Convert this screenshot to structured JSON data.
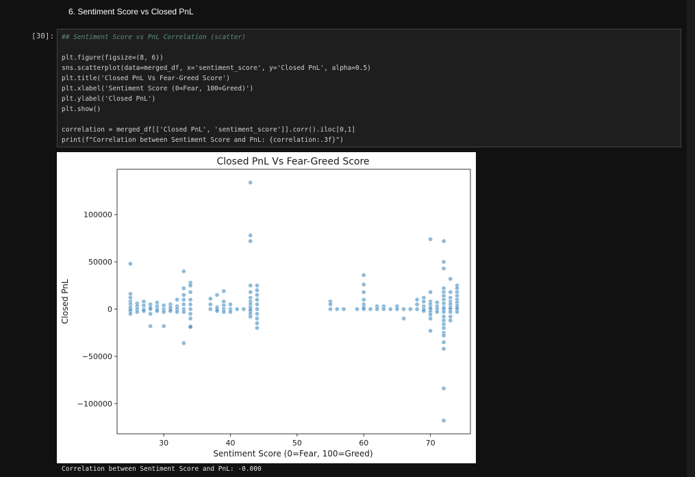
{
  "notebook": {
    "heading": "6. Sentiment Score vs Closed PnL",
    "cell_prompt": "[30]:",
    "code_lines": [
      "## Sentiment Score vs PnL Correlation (scatter)",
      "",
      "plt.figure(figsize=(8, 6))",
      "sns.scatterplot(data=merged_df, x='sentiment_score', y='Closed PnL', alpha=0.5)",
      "plt.title('Closed PnL Vs Fear-Greed Score')",
      "plt.xlabel('Sentiment Score (0=Fear, 100=Greed)')",
      "plt.ylabel('Closed PnL')",
      "plt.show()",
      "",
      "correlation = merged_df[['Closed PnL', 'sentiment_score']].corr().iloc[0,1]",
      "print(f\"Correlation between Sentiment Score and PnL: {correlation:.3f}\")"
    ],
    "output_text": "Correlation between Sentiment Score and PnL: -0.000"
  },
  "colors": {
    "background": "#111111",
    "cell_background": "#1e1e1e",
    "point": "#1f77b4"
  },
  "chart_data": {
    "type": "scatter",
    "title": "Closed PnL Vs Fear-Greed Score",
    "xlabel": "Sentiment Score (0=Fear, 100=Greed)",
    "ylabel": "Closed PnL",
    "xlim": [
      23,
      76
    ],
    "ylim": [
      -132000,
      148000
    ],
    "xticks": [
      30,
      40,
      50,
      60,
      70
    ],
    "yticks": [
      -100000,
      -50000,
      0,
      50000,
      100000
    ],
    "grid": false,
    "alpha": 0.5,
    "columns": [
      {
        "x": 25,
        "y": [
          48000,
          16000,
          12000,
          8000,
          5000,
          2000,
          0,
          -2000,
          -5000
        ]
      },
      {
        "x": 26,
        "y": [
          6000,
          3000,
          0,
          -3000
        ]
      },
      {
        "x": 27,
        "y": [
          8000,
          4000,
          0,
          -2000
        ]
      },
      {
        "x": 28,
        "y": [
          5000,
          2000,
          0,
          -5000,
          -18000
        ]
      },
      {
        "x": 29,
        "y": [
          7000,
          3000,
          0,
          -2000
        ]
      },
      {
        "x": 30,
        "y": [
          4000,
          0,
          -3000,
          -18000
        ]
      },
      {
        "x": 31,
        "y": [
          5000,
          2000,
          0,
          -2000
        ]
      },
      {
        "x": 32,
        "y": [
          10000,
          3000,
          0,
          -3000
        ]
      },
      {
        "x": 33,
        "y": [
          40000,
          22000,
          15000,
          10000,
          5000,
          0,
          -3000,
          -36000
        ]
      },
      {
        "x": 34,
        "y": [
          28000,
          25000,
          18000,
          10000,
          5000,
          0,
          -5000,
          -10000,
          -18000,
          -19000
        ]
      },
      {
        "x": 37,
        "y": [
          11000,
          5000,
          0
        ]
      },
      {
        "x": 38,
        "y": [
          15000,
          2000,
          0,
          -2000
        ]
      },
      {
        "x": 39,
        "y": [
          19000,
          8000,
          4000,
          0,
          -3000
        ]
      },
      {
        "x": 40,
        "y": [
          5000,
          0,
          -3000
        ]
      },
      {
        "x": 41,
        "y": [
          0
        ]
      },
      {
        "x": 42,
        "y": [
          0
        ]
      },
      {
        "x": 43,
        "y": [
          134000,
          78000,
          72000,
          25000,
          18000,
          12000,
          8000,
          5000,
          2000,
          0,
          -2000,
          -5000,
          -8000
        ]
      },
      {
        "x": 44,
        "y": [
          25000,
          20000,
          15000,
          10000,
          5000,
          0,
          -5000,
          -10000,
          -15000,
          -20000
        ]
      },
      {
        "x": 55,
        "y": [
          8000,
          5000,
          0
        ]
      },
      {
        "x": 56,
        "y": [
          0
        ]
      },
      {
        "x": 57,
        "y": [
          0
        ]
      },
      {
        "x": 59,
        "y": [
          0
        ]
      },
      {
        "x": 60,
        "y": [
          36000,
          26000,
          18000,
          10000,
          5000,
          2000,
          0
        ]
      },
      {
        "x": 61,
        "y": [
          0
        ]
      },
      {
        "x": 62,
        "y": [
          3000,
          0
        ]
      },
      {
        "x": 63,
        "y": [
          3000,
          0
        ]
      },
      {
        "x": 64,
        "y": [
          0
        ]
      },
      {
        "x": 65,
        "y": [
          3000,
          0
        ]
      },
      {
        "x": 66,
        "y": [
          0,
          -10000
        ]
      },
      {
        "x": 67,
        "y": [
          0
        ]
      },
      {
        "x": 68,
        "y": [
          10000,
          5000,
          0
        ]
      },
      {
        "x": 69,
        "y": [
          12000,
          8000,
          3000,
          0,
          -2000
        ]
      },
      {
        "x": 70,
        "y": [
          74000,
          18000,
          8000,
          5000,
          2000,
          0,
          -3000,
          -6000,
          -10000,
          -23000
        ]
      },
      {
        "x": 71,
        "y": [
          7000,
          3000,
          0,
          -3000
        ]
      },
      {
        "x": 72,
        "y": [
          72000,
          50000,
          43000,
          22000,
          18000,
          14000,
          10000,
          6000,
          2000,
          0,
          -3000,
          -8000,
          -12000,
          -16000,
          -20000,
          -25000,
          -28000,
          -35000,
          -42000,
          -84000,
          -118000
        ]
      },
      {
        "x": 73,
        "y": [
          32000,
          18000,
          12000,
          8000,
          5000,
          2000,
          0,
          -3000,
          -8000,
          -12000
        ]
      },
      {
        "x": 74,
        "y": [
          25000,
          22000,
          18000,
          14000,
          10000,
          7000,
          4000,
          2000,
          0,
          -3000
        ]
      }
    ]
  }
}
